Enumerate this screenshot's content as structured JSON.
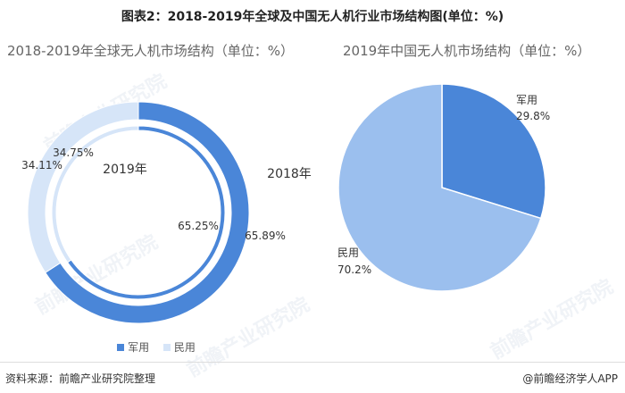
{
  "main_title": "图表2：2018-2019年全球及中国无人机行业市场结构图(单位：%)",
  "colors": {
    "military": "#4a86d8",
    "civil_ring": "#d6e5f8",
    "civil_pie": "#9bbfee"
  },
  "chart_data": [
    {
      "type": "pie",
      "subtype": "double-donut",
      "title": "2018-2019年全球无人机市场结构（单位：%）",
      "categories": [
        "军用",
        "民用"
      ],
      "series": [
        {
          "name": "2019年",
          "ring": "inner",
          "values": [
            65.25,
            34.75
          ],
          "labels": [
            "65.25%",
            "34.75%"
          ]
        },
        {
          "name": "2018年",
          "ring": "outer",
          "values": [
            65.89,
            34.11
          ],
          "labels": [
            "65.89%",
            "34.11%"
          ]
        }
      ],
      "legend": {
        "position": "bottom",
        "items": [
          "军用",
          "民用"
        ]
      }
    },
    {
      "type": "pie",
      "title": "2019年中国无人机市场结构（单位：%）",
      "categories": [
        "军用",
        "民用"
      ],
      "values": [
        29.8,
        70.2
      ],
      "labels": [
        "29.8%",
        "70.2%"
      ]
    }
  ],
  "footer": {
    "source": "资料来源：前瞻产业研究院整理",
    "brand": "@前瞻经济学人APP"
  }
}
